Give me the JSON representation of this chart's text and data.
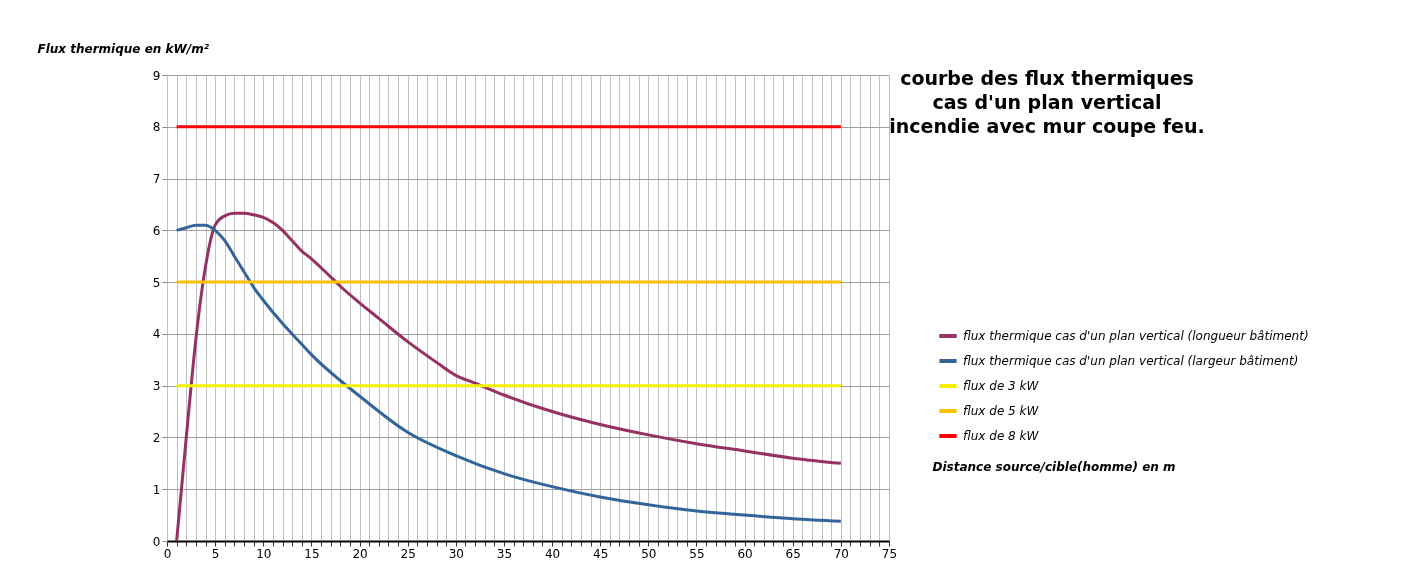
{
  "chart_data": {
    "type": "line",
    "title": "courbe des flux thermiques\ncas d'un plan vertical\nincendie avec mur coupe feu.",
    "xlabel": "Distance source/cible(homme) en m",
    "ylabel": "Flux thermique en kW/m²",
    "xlim": [
      0,
      75
    ],
    "ylim": [
      0,
      9
    ],
    "xticks": [
      0,
      {
        "value": 1,
        "label": null
      },
      {
        "value": 2,
        "label": null
      },
      {
        "value": 3,
        "label": null
      },
      {
        "value": 4,
        "label": null
      },
      5,
      {
        "value": 6,
        "label": null
      },
      {
        "value": 7,
        "label": null
      },
      {
        "value": 8,
        "label": null
      },
      {
        "value": 9,
        "label": null
      },
      10,
      {
        "value": 11,
        "label": null
      },
      {
        "value": 12,
        "label": null
      },
      {
        "value": 13,
        "label": null
      },
      {
        "value": 14,
        "label": null
      },
      15,
      {
        "value": 16,
        "label": null
      },
      {
        "value": 17,
        "label": null
      },
      {
        "value": 18,
        "label": null
      },
      {
        "value": 19,
        "label": null
      },
      20,
      {
        "value": 21,
        "label": null
      },
      {
        "value": 22,
        "label": null
      },
      {
        "value": 23,
        "label": null
      },
      {
        "value": 24,
        "label": null
      },
      25,
      {
        "value": 26,
        "label": null
      },
      {
        "value": 27,
        "label": null
      },
      {
        "value": 28,
        "label": null
      },
      {
        "value": 29,
        "label": null
      },
      30,
      {
        "value": 31,
        "label": null
      },
      {
        "value": 32,
        "label": null
      },
      {
        "value": 33,
        "label": null
      },
      {
        "value": 34,
        "label": null
      },
      35,
      {
        "value": 36,
        "label": null
      },
      {
        "value": 37,
        "label": null
      },
      {
        "value": 38,
        "label": null
      },
      {
        "value": 39,
        "label": null
      },
      40,
      {
        "value": 41,
        "label": null
      },
      {
        "value": 42,
        "label": null
      },
      {
        "value": 43,
        "label": null
      },
      {
        "value": 44,
        "label": null
      },
      45,
      {
        "value": 46,
        "label": null
      },
      {
        "value": 47,
        "label": null
      },
      {
        "value": 48,
        "label": null
      },
      {
        "value": 49,
        "label": null
      },
      50,
      {
        "value": 51,
        "label": null
      },
      {
        "value": 52,
        "label": null
      },
      {
        "value": 53,
        "label": null
      },
      {
        "value": 54,
        "label": null
      },
      55,
      {
        "value": 56,
        "label": null
      },
      {
        "value": 57,
        "label": null
      },
      {
        "value": 58,
        "label": null
      },
      {
        "value": 59,
        "label": null
      },
      60,
      {
        "value": 61,
        "label": null
      },
      {
        "value": 62,
        "label": null
      },
      {
        "value": 63,
        "label": null
      },
      {
        "value": 64,
        "label": null
      },
      65,
      {
        "value": 66,
        "label": null
      },
      {
        "value": 67,
        "label": null
      },
      {
        "value": 68,
        "label": null
      },
      {
        "value": 69,
        "label": null
      },
      70,
      {
        "value": 71,
        "label": null
      },
      {
        "value": 72,
        "label": null
      },
      {
        "value": 73,
        "label": null
      },
      {
        "value": 74,
        "label": null
      },
      75
    ],
    "yticks": [
      0,
      1,
      2,
      3,
      4,
      5,
      6,
      7,
      8,
      9
    ],
    "grid": true,
    "legend": "right",
    "marker": "none",
    "line_style": "solid",
    "series": [
      {
        "name": "flux thermique cas d'un plan vertical (longueur bâtiment)",
        "color": "#953163",
        "x": [
          1,
          2,
          3,
          4,
          5,
          6,
          7,
          8,
          9,
          10,
          11,
          12,
          13,
          14,
          15,
          17,
          18,
          20,
          22,
          25,
          28,
          30,
          32,
          35,
          40,
          45,
          50,
          55,
          60,
          65,
          70
        ],
        "values": [
          0,
          2.0,
          3.9,
          5.3,
          6.1,
          6.28,
          6.33,
          6.33,
          6.3,
          6.25,
          6.15,
          6.0,
          5.8,
          5.6,
          5.45,
          5.1,
          4.92,
          4.6,
          4.3,
          3.85,
          3.45,
          3.2,
          3.05,
          2.82,
          2.5,
          2.25,
          2.05,
          1.88,
          1.74,
          1.6,
          1.5
        ]
      },
      {
        "name": "flux thermique cas d'un plan vertical (largeur bâtiment)",
        "color": "#33659a",
        "x": [
          1,
          2,
          3,
          4,
          5,
          6,
          7,
          8,
          9,
          10,
          12,
          14,
          15,
          18,
          20,
          25,
          30,
          35,
          40,
          45,
          50,
          55,
          60,
          65,
          70
        ],
        "values": [
          6.0,
          6.05,
          6.1,
          6.1,
          6.0,
          5.8,
          5.5,
          5.2,
          4.9,
          4.65,
          4.2,
          3.8,
          3.6,
          3.1,
          2.8,
          2.1,
          1.65,
          1.3,
          1.05,
          0.85,
          0.7,
          0.58,
          0.5,
          0.43,
          0.38
        ]
      },
      {
        "name": "flux de 3 kW",
        "color": "#f5ef00",
        "x": [
          1,
          70
        ],
        "values": [
          3,
          3
        ]
      },
      {
        "name": "flux de 5 kW",
        "color": "#ffc000",
        "x": [
          1,
          70
        ],
        "values": [
          5,
          5
        ]
      },
      {
        "name": "flux de 8 kW",
        "color": "#ff0000",
        "x": [
          1,
          70
        ],
        "values": [
          8,
          8
        ]
      }
    ]
  }
}
